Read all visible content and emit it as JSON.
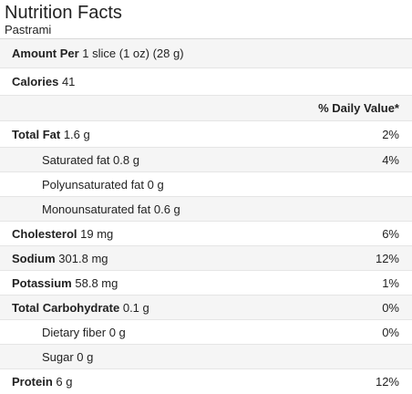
{
  "header": {
    "title": "Nutrition Facts",
    "subtitle": "Pastrami"
  },
  "amount": {
    "label": "Amount Per",
    "value": "1 slice (1 oz) (28 g)"
  },
  "calories": {
    "label": "Calories",
    "value": "41"
  },
  "daily_value_header": "% Daily Value*",
  "nutrients": [
    {
      "label": "Total Fat",
      "amount": "1.6 g",
      "dv": "2%"
    },
    {
      "label": "Saturated fat 0.8 g",
      "dv": "4%"
    },
    {
      "label": "Polyunsaturated fat 0 g",
      "dv": ""
    },
    {
      "label": "Monounsaturated fat 0.6 g",
      "dv": ""
    },
    {
      "label": "Cholesterol",
      "amount": "19 mg",
      "dv": "6%"
    },
    {
      "label": "Sodium",
      "amount": "301.8 mg",
      "dv": "12%"
    },
    {
      "label": "Potassium",
      "amount": "58.8 mg",
      "dv": "1%"
    },
    {
      "label": "Total Carbohydrate",
      "amount": "0.1 g",
      "dv": "0%"
    },
    {
      "label": "Dietary fiber 0 g",
      "dv": "0%"
    },
    {
      "label": "Sugar 0 g",
      "dv": ""
    },
    {
      "label": "Protein",
      "amount": "6 g",
      "dv": "12%"
    }
  ]
}
